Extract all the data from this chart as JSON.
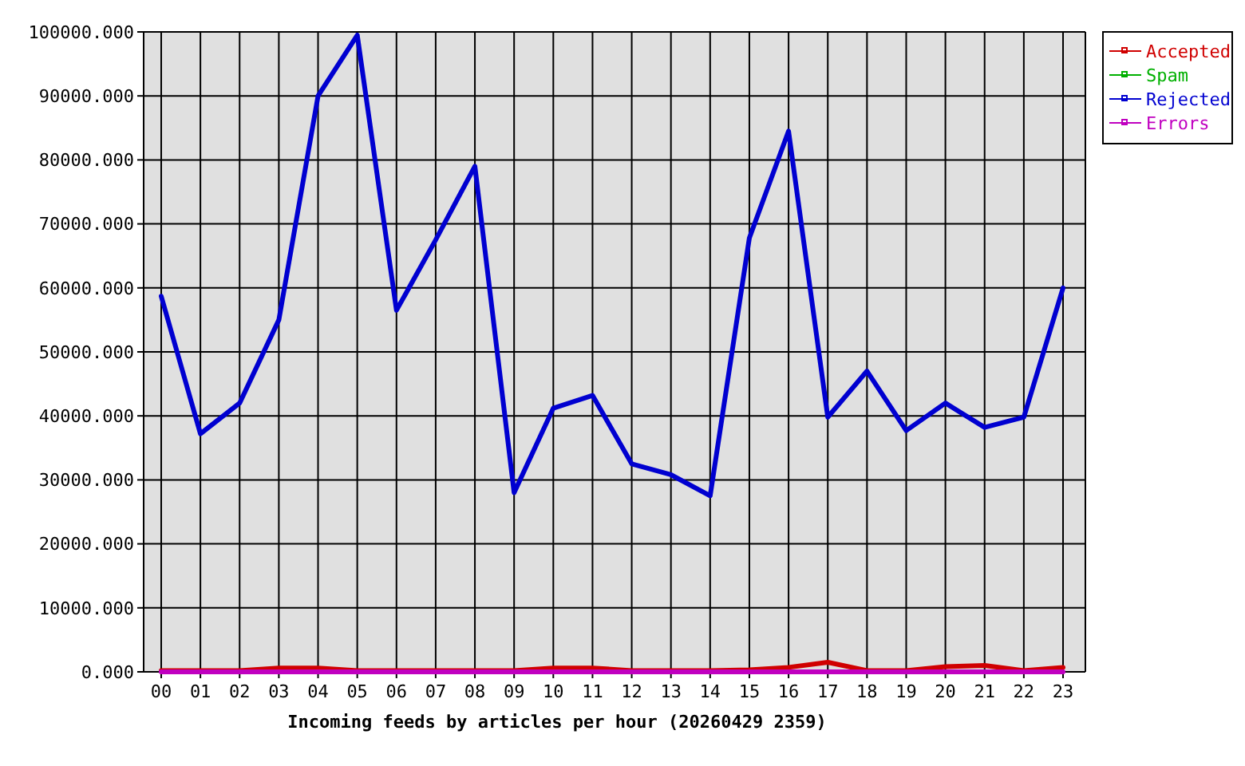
{
  "chart_data": {
    "type": "line",
    "xlabel": "Incoming feeds by articles per hour (20260429 2359)",
    "categories": [
      "00",
      "01",
      "02",
      "03",
      "04",
      "05",
      "06",
      "07",
      "08",
      "09",
      "10",
      "11",
      "12",
      "13",
      "14",
      "15",
      "16",
      "17",
      "18",
      "19",
      "20",
      "21",
      "22",
      "23"
    ],
    "series": [
      {
        "name": "Accepted",
        "color": "#d00000",
        "values": [
          200,
          200,
          200,
          600,
          600,
          200,
          200,
          200,
          200,
          200,
          600,
          600,
          200,
          200,
          200,
          300,
          700,
          1500,
          200,
          200,
          800,
          1000,
          200,
          700
        ]
      },
      {
        "name": "Spam",
        "color": "#00b000",
        "values": [
          null,
          null,
          null,
          null,
          null,
          null,
          null,
          null,
          null,
          null,
          null,
          null,
          null,
          null,
          null,
          null,
          null,
          null,
          null,
          null,
          null,
          null,
          null,
          null
        ]
      },
      {
        "name": "Rejected",
        "color": "#0000d0",
        "values": [
          58700,
          37200,
          42000,
          55000,
          90000,
          99500,
          56500,
          67500,
          79000,
          28000,
          41200,
          43200,
          32500,
          30800,
          27500,
          67800,
          84500,
          39800,
          47000,
          37700,
          42000,
          38200,
          39800,
          60000
        ]
      },
      {
        "name": "Errors",
        "color": "#c000c0",
        "values": [
          0,
          0,
          0,
          0,
          0,
          0,
          0,
          0,
          0,
          0,
          0,
          0,
          0,
          0,
          0,
          0,
          0,
          0,
          0,
          0,
          0,
          0,
          0,
          0
        ]
      }
    ],
    "ylim": [
      0,
      100000
    ],
    "yticks": [
      {
        "value": 0,
        "label": "0.000"
      },
      {
        "value": 10000,
        "label": "10000.000"
      },
      {
        "value": 20000,
        "label": "20000.000"
      },
      {
        "value": 30000,
        "label": "30000.000"
      },
      {
        "value": 40000,
        "label": "40000.000"
      },
      {
        "value": 50000,
        "label": "50000.000"
      },
      {
        "value": 60000,
        "label": "60000.000"
      },
      {
        "value": 70000,
        "label": "70000.000"
      },
      {
        "value": 80000,
        "label": "80000.000"
      },
      {
        "value": 90000,
        "label": "90000.000"
      },
      {
        "value": 100000,
        "label": "100000.000"
      }
    ],
    "grid": true,
    "legend": "top right"
  }
}
